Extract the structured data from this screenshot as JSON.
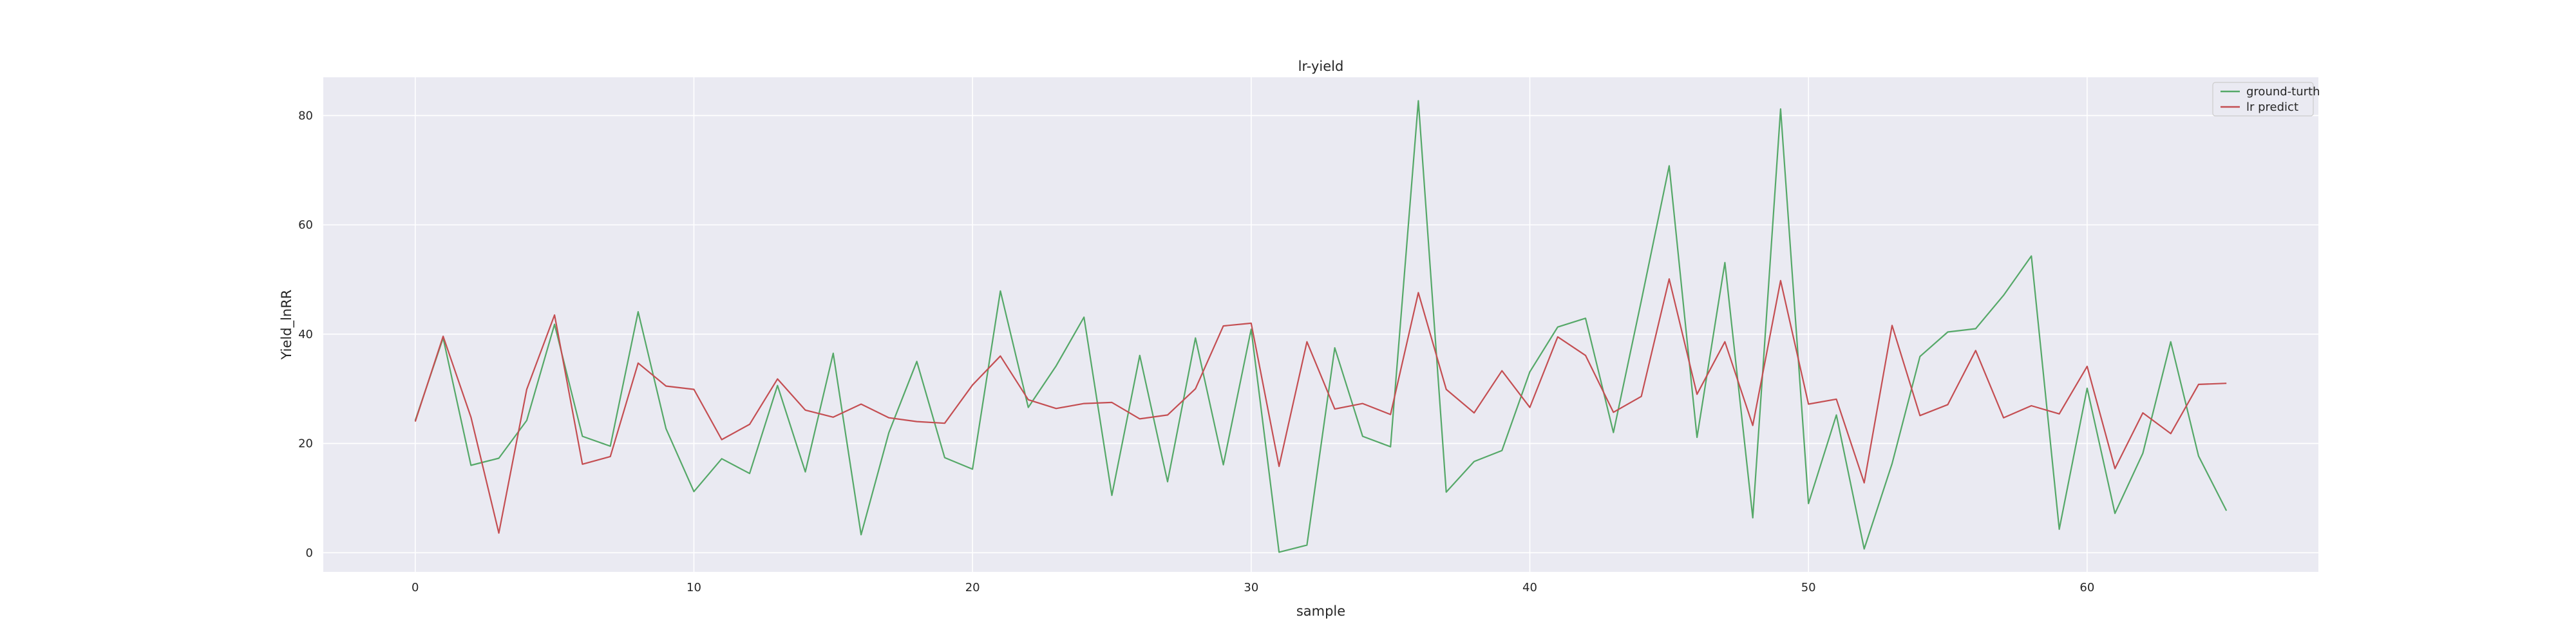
{
  "chart_data": {
    "type": "line",
    "title": "lr-yield",
    "xlabel": "sample",
    "ylabel": "Yield_lnRR",
    "xlim": [
      -3.3,
      68.3
    ],
    "ylim": [
      -3.5,
      87.0
    ],
    "xticks": [
      0,
      10,
      20,
      30,
      40,
      50,
      60
    ],
    "yticks": [
      0,
      20,
      40,
      60,
      80
    ],
    "grid": true,
    "legend_position": "upper right",
    "series": [
      {
        "name": "ground-turth",
        "color": "#55a868",
        "x": [
          0,
          1,
          2,
          3,
          4,
          5,
          6,
          7,
          8,
          9,
          10,
          11,
          12,
          13,
          14,
          15,
          16,
          17,
          18,
          19,
          20,
          21,
          22,
          23,
          24,
          25,
          26,
          27,
          28,
          29,
          30,
          31,
          32,
          33,
          34,
          35,
          36,
          37,
          38,
          39,
          40,
          41,
          42,
          43,
          44,
          45,
          46,
          47,
          48,
          49,
          50,
          51,
          52,
          53,
          54,
          55,
          56,
          57,
          58,
          59,
          60,
          61,
          62,
          63,
          64,
          65
        ],
        "y": [
          24.2,
          39.3,
          16.0,
          17.3,
          24.2,
          41.8,
          21.3,
          19.5,
          44.1,
          22.7,
          11.2,
          17.2,
          14.5,
          30.6,
          14.8,
          36.5,
          3.3,
          22.0,
          35.0,
          17.4,
          15.3,
          47.9,
          26.6,
          34.2,
          43.1,
          10.5,
          36.1,
          13.0,
          39.3,
          16.1,
          40.9,
          0.1,
          1.4,
          37.5,
          21.3,
          19.4,
          82.7,
          11.1,
          16.7,
          18.7,
          33.1,
          41.3,
          42.9,
          22.0,
          46.1,
          70.8,
          21.1,
          53.1,
          6.4,
          81.2,
          9.0,
          25.2,
          0.7,
          16.3,
          35.9,
          40.4,
          41.0,
          47.1,
          54.3,
          4.3,
          30.1,
          7.2,
          18.2,
          38.6,
          17.7,
          7.7
        ]
      },
      {
        "name": "lr predict",
        "color": "#c44e52",
        "x": [
          0,
          1,
          2,
          3,
          4,
          5,
          6,
          7,
          8,
          9,
          10,
          11,
          12,
          13,
          14,
          15,
          16,
          17,
          18,
          19,
          20,
          21,
          22,
          23,
          24,
          25,
          26,
          27,
          28,
          29,
          30,
          31,
          32,
          33,
          34,
          35,
          36,
          37,
          38,
          39,
          40,
          41,
          42,
          43,
          44,
          45,
          46,
          47,
          48,
          49,
          50,
          51,
          52,
          53,
          54,
          55,
          56,
          57,
          58,
          59,
          60,
          61,
          62,
          63,
          64,
          65
        ],
        "y": [
          24.0,
          39.6,
          24.8,
          3.6,
          29.9,
          43.5,
          16.2,
          17.6,
          34.7,
          30.5,
          29.9,
          20.7,
          23.5,
          31.8,
          26.1,
          24.8,
          27.2,
          24.7,
          24.0,
          23.7,
          30.7,
          36.0,
          28.0,
          26.4,
          27.3,
          27.5,
          24.5,
          25.2,
          30.0,
          41.5,
          42.0,
          15.8,
          38.6,
          26.3,
          27.3,
          25.3,
          47.6,
          29.9,
          25.6,
          33.3,
          26.6,
          39.5,
          36.1,
          25.7,
          28.6,
          50.1,
          29.0,
          38.6,
          23.3,
          49.8,
          27.2,
          28.1,
          12.8,
          41.6,
          25.1,
          27.1,
          37.0,
          24.7,
          26.9,
          25.4,
          34.1,
          15.4,
          25.6,
          21.8,
          30.8,
          31.0
        ]
      }
    ]
  }
}
